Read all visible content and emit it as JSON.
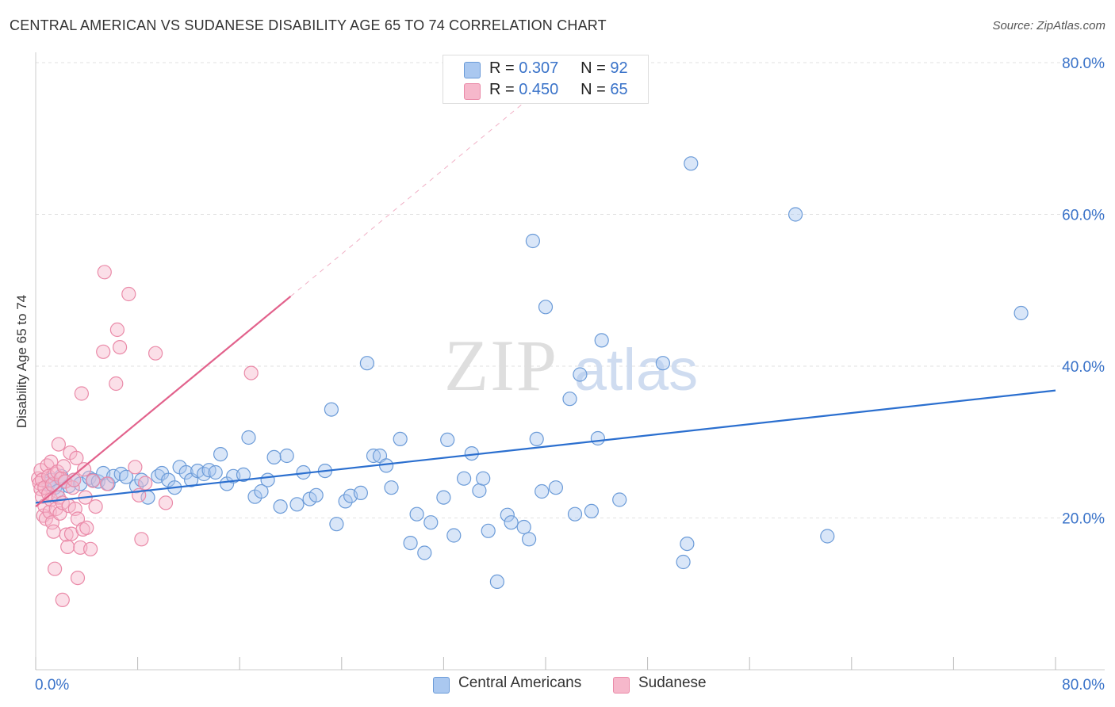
{
  "title": "CENTRAL AMERICAN VS SUDANESE DISABILITY AGE 65 TO 74 CORRELATION CHART",
  "source": "Source: ZipAtlas.com",
  "watermark": {
    "zip": "ZIP",
    "atlas": "atlas"
  },
  "legend": {
    "r_label": "R =",
    "n_label": "N =",
    "rows": [
      {
        "r": "0.307",
        "n": "92"
      },
      {
        "r": "0.450",
        "n": "65"
      }
    ]
  },
  "colors": {
    "blue_fill": "#aac8f0",
    "blue_stroke": "#6b9bd8",
    "blue_line": "#2b6fcf",
    "pink_fill": "#f6b8cb",
    "pink_stroke": "#ea8aa8",
    "pink_line": "#e2628c",
    "tick_label": "#3a73c9",
    "grid": "#e2e2e2"
  },
  "chart_data": {
    "type": "scatter",
    "title": "CENTRAL AMERICAN VS SUDANESE DISABILITY AGE 65 TO 74 CORRELATION CHART",
    "xlabel": "",
    "ylabel": "Disability Age 65 to 74",
    "xlim": [
      0,
      80
    ],
    "ylim": [
      0,
      80
    ],
    "x_tick_labels": [
      "0.0%",
      "80.0%"
    ],
    "y_tick_labels": [
      "20.0%",
      "40.0%",
      "60.0%",
      "80.0%"
    ],
    "y_ticks": [
      20,
      40,
      60,
      80
    ],
    "grid": true,
    "legend_position": "top-center",
    "series": [
      {
        "name": "Central Americans",
        "r": 0.307,
        "n": 92,
        "trend": {
          "x": [
            0,
            80
          ],
          "y": [
            22.0,
            36.8
          ]
        },
        "points": [
          [
            1.0,
            24.5
          ],
          [
            1.2,
            25.0
          ],
          [
            1.5,
            24.0
          ],
          [
            1.7,
            23.5
          ],
          [
            2.0,
            25.5
          ],
          [
            2.3,
            24.8
          ],
          [
            2.6,
            24.2
          ],
          [
            3.0,
            25.0
          ],
          [
            3.5,
            24.5
          ],
          [
            4.2,
            25.3
          ],
          [
            4.5,
            25.0
          ],
          [
            4.9,
            24.8
          ],
          [
            5.3,
            25.9
          ],
          [
            5.7,
            24.5
          ],
          [
            6.1,
            25.5
          ],
          [
            6.7,
            25.8
          ],
          [
            7.1,
            25.4
          ],
          [
            7.9,
            24.2
          ],
          [
            8.3,
            25.0
          ],
          [
            8.8,
            22.7
          ],
          [
            9.6,
            25.5
          ],
          [
            9.9,
            25.9
          ],
          [
            10.4,
            25.0
          ],
          [
            10.9,
            24.0
          ],
          [
            11.3,
            26.7
          ],
          [
            11.8,
            26.0
          ],
          [
            12.2,
            25.0
          ],
          [
            12.7,
            26.2
          ],
          [
            13.2,
            25.8
          ],
          [
            13.6,
            26.3
          ],
          [
            14.1,
            26.0
          ],
          [
            14.5,
            28.4
          ],
          [
            15.0,
            24.5
          ],
          [
            15.5,
            25.5
          ],
          [
            16.3,
            25.7
          ],
          [
            16.7,
            30.6
          ],
          [
            17.2,
            22.8
          ],
          [
            17.7,
            23.5
          ],
          [
            18.2,
            25.0
          ],
          [
            18.7,
            28.0
          ],
          [
            19.2,
            21.5
          ],
          [
            19.7,
            28.2
          ],
          [
            20.5,
            21.8
          ],
          [
            21.0,
            26.0
          ],
          [
            21.5,
            22.5
          ],
          [
            22.0,
            23.0
          ],
          [
            22.7,
            26.2
          ],
          [
            23.2,
            34.3
          ],
          [
            23.6,
            19.2
          ],
          [
            24.3,
            22.2
          ],
          [
            24.7,
            22.9
          ],
          [
            25.5,
            23.3
          ],
          [
            26.0,
            40.4
          ],
          [
            26.5,
            28.2
          ],
          [
            27.0,
            28.2
          ],
          [
            27.5,
            26.9
          ],
          [
            27.9,
            24.0
          ],
          [
            28.6,
            30.4
          ],
          [
            29.4,
            16.7
          ],
          [
            29.9,
            20.5
          ],
          [
            30.5,
            15.4
          ],
          [
            31.0,
            19.4
          ],
          [
            32.0,
            22.7
          ],
          [
            32.3,
            30.3
          ],
          [
            32.8,
            17.7
          ],
          [
            33.6,
            25.2
          ],
          [
            34.2,
            28.5
          ],
          [
            34.8,
            23.6
          ],
          [
            35.1,
            25.2
          ],
          [
            35.5,
            18.3
          ],
          [
            36.2,
            11.6
          ],
          [
            37.0,
            20.4
          ],
          [
            37.3,
            19.4
          ],
          [
            38.3,
            18.8
          ],
          [
            38.7,
            17.2
          ],
          [
            39.0,
            56.5
          ],
          [
            39.3,
            30.4
          ],
          [
            39.7,
            23.5
          ],
          [
            40.0,
            47.8
          ],
          [
            40.8,
            24.0
          ],
          [
            41.9,
            35.7
          ],
          [
            42.3,
            20.5
          ],
          [
            42.7,
            38.9
          ],
          [
            43.6,
            20.9
          ],
          [
            44.1,
            30.5
          ],
          [
            44.4,
            43.4
          ],
          [
            45.8,
            22.4
          ],
          [
            49.2,
            40.4
          ],
          [
            50.8,
            14.2
          ],
          [
            51.1,
            16.6
          ],
          [
            51.4,
            66.7
          ],
          [
            59.6,
            60.0
          ],
          [
            62.1,
            17.6
          ],
          [
            77.3,
            47.0
          ]
        ]
      },
      {
        "name": "Sudanese",
        "r": 0.45,
        "n": 65,
        "trend": {
          "x": [
            0,
            20
          ],
          "y": [
            21.5,
            49.2
          ]
        },
        "trend_dashed": {
          "x": [
            20,
            38.5
          ],
          "y": [
            49.2,
            75.0
          ]
        },
        "points": [
          [
            0.2,
            25.2
          ],
          [
            0.3,
            24.6
          ],
          [
            0.4,
            23.8
          ],
          [
            0.4,
            26.3
          ],
          [
            0.5,
            22.8
          ],
          [
            0.5,
            25.0
          ],
          [
            0.6,
            20.3
          ],
          [
            0.7,
            24.0
          ],
          [
            0.7,
            21.6
          ],
          [
            0.8,
            19.9
          ],
          [
            0.9,
            26.9
          ],
          [
            1.0,
            23.2
          ],
          [
            1.0,
            25.5
          ],
          [
            1.1,
            20.8
          ],
          [
            1.2,
            22.4
          ],
          [
            1.2,
            27.4
          ],
          [
            1.3,
            24.4
          ],
          [
            1.3,
            19.4
          ],
          [
            1.4,
            18.2
          ],
          [
            1.5,
            25.8
          ],
          [
            1.5,
            13.3
          ],
          [
            1.6,
            21.2
          ],
          [
            1.7,
            26.1
          ],
          [
            1.8,
            22.7
          ],
          [
            1.8,
            29.7
          ],
          [
            1.9,
            20.6
          ],
          [
            2.0,
            25.2
          ],
          [
            2.1,
            9.2
          ],
          [
            2.1,
            22.0
          ],
          [
            2.2,
            26.8
          ],
          [
            2.3,
            24.8
          ],
          [
            2.4,
            17.8
          ],
          [
            2.5,
            16.2
          ],
          [
            2.6,
            21.6
          ],
          [
            2.7,
            28.6
          ],
          [
            2.8,
            17.9
          ],
          [
            2.9,
            24.0
          ],
          [
            3.0,
            25.0
          ],
          [
            3.1,
            21.2
          ],
          [
            3.2,
            27.9
          ],
          [
            3.3,
            19.9
          ],
          [
            3.3,
            12.1
          ],
          [
            3.5,
            16.1
          ],
          [
            3.6,
            36.4
          ],
          [
            3.7,
            18.5
          ],
          [
            3.8,
            26.4
          ],
          [
            3.9,
            22.7
          ],
          [
            4.0,
            18.7
          ],
          [
            4.3,
            15.9
          ],
          [
            4.5,
            24.9
          ],
          [
            4.7,
            21.5
          ],
          [
            5.3,
            41.9
          ],
          [
            5.4,
            52.4
          ],
          [
            5.6,
            24.5
          ],
          [
            6.3,
            37.7
          ],
          [
            6.4,
            44.8
          ],
          [
            6.6,
            42.5
          ],
          [
            7.3,
            49.5
          ],
          [
            7.8,
            26.7
          ],
          [
            8.1,
            23.0
          ],
          [
            8.3,
            17.2
          ],
          [
            8.6,
            24.6
          ],
          [
            9.4,
            41.7
          ],
          [
            10.2,
            22.0
          ],
          [
            16.9,
            39.1
          ]
        ]
      }
    ]
  },
  "bottom_legend": [
    "Central Americans",
    "Sudanese"
  ]
}
